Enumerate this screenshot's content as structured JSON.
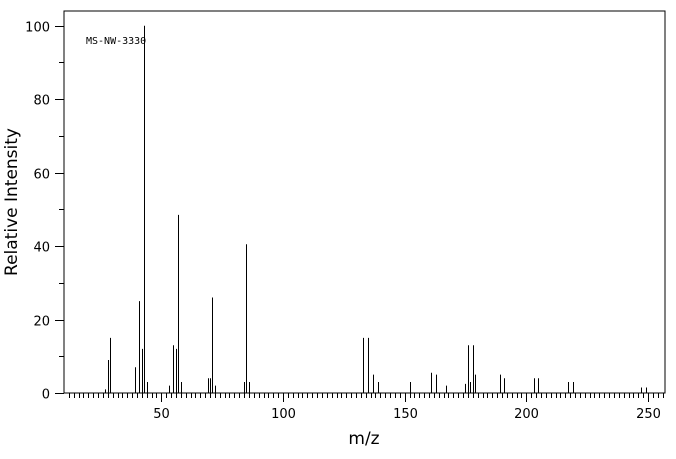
{
  "chart_data": {
    "type": "bar",
    "annotation": "MS-NW-3330",
    "xlabel": "m/z",
    "ylabel": "Relative Intensity",
    "xlim": [
      10,
      257
    ],
    "ylim": [
      0,
      104
    ],
    "x_ticks": [
      50,
      100,
      150,
      200,
      250
    ],
    "y_ticks": [
      0,
      20,
      40,
      60,
      80,
      100
    ],
    "x_minor_step": 2,
    "y_minor_step": 10,
    "x_tick_labels": [
      "50",
      "100",
      "150",
      "200",
      "250"
    ],
    "y_tick_labels": [
      "0",
      "20",
      "40",
      "60",
      "80",
      "100"
    ],
    "frame_color": "#000000",
    "bar_color": "#000000",
    "peaks": {
      "x": [
        27,
        28,
        29,
        39,
        41,
        42,
        43,
        44,
        53,
        55,
        56,
        57,
        58,
        69,
        70,
        71,
        72,
        84,
        85,
        86,
        133,
        135,
        137,
        139,
        152,
        161,
        163,
        167,
        175,
        176,
        177,
        178,
        179,
        189,
        191,
        203,
        205,
        217,
        219,
        247,
        249
      ],
      "y": [
        1,
        9,
        15,
        7,
        25,
        12,
        100,
        3,
        2,
        13,
        12,
        48.5,
        3,
        4,
        4,
        26,
        2,
        3,
        40.5,
        3,
        15,
        15,
        5,
        3,
        3,
        5.5,
        5,
        2,
        2.5,
        13,
        3,
        13,
        5,
        5,
        4,
        4,
        4,
        3,
        3,
        1.5,
        1.5
      ]
    }
  }
}
